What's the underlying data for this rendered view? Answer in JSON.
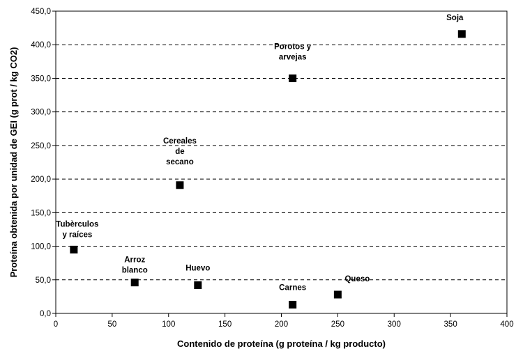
{
  "chart_data": {
    "type": "scatter",
    "title": "",
    "xlabel": "Contenido de proteína (g proteína / kg producto)",
    "ylabel": "Proteína obtenida por unidad de GEI (g prot / kg CO2)",
    "xlim": [
      0,
      400
    ],
    "ylim": [
      0,
      450
    ],
    "x_ticks": [
      "0",
      "50",
      "100",
      "150",
      "200",
      "250",
      "300",
      "350",
      "400"
    ],
    "y_ticks": [
      "0,0",
      "50,0",
      "100,0",
      "150,0",
      "200,0",
      "250,0",
      "300,0",
      "350,0",
      "400,0",
      "450,0"
    ],
    "grid": "horizontal dashed",
    "marker_color": "#000000",
    "points": [
      {
        "label": [
          "Tubèrculos",
          "y raíces"
        ],
        "x": 16,
        "y": 95
      },
      {
        "label": [
          "Arroz",
          "blanco"
        ],
        "x": 70,
        "y": 46
      },
      {
        "label": [
          "Cereales",
          "de",
          "secano"
        ],
        "x": 110,
        "y": 191
      },
      {
        "label": [
          "Huevo"
        ],
        "x": 126,
        "y": 42
      },
      {
        "label": [
          "Porotos y",
          "arvejas"
        ],
        "x": 210,
        "y": 350
      },
      {
        "label": [
          "Carnes"
        ],
        "x": 210,
        "y": 13
      },
      {
        "label": [
          "Queso"
        ],
        "x": 250,
        "y": 28
      },
      {
        "label": [
          "Soja"
        ],
        "x": 360,
        "y": 416
      }
    ]
  }
}
